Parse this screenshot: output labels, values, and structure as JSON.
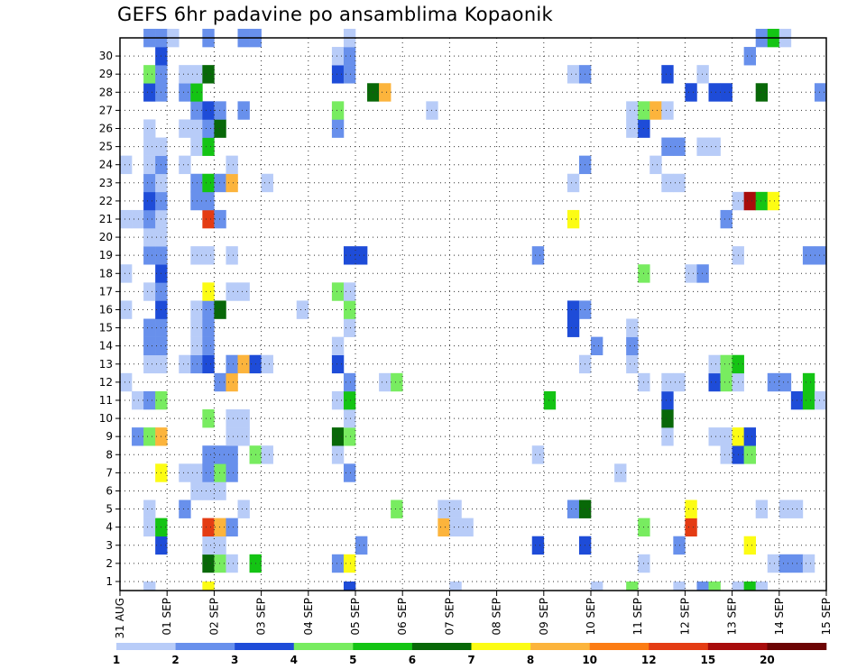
{
  "chart_data": {
    "type": "heatmap",
    "title": "GEFS 6hr padavine po ansamblima Kopaonik",
    "xlabel": "",
    "ylabel": "",
    "x_tick_labels": [
      "31 AUG",
      "01 SEP",
      "02 SEP",
      "03 SEP",
      "04 SEP",
      "05 SEP",
      "06 SEP",
      "07 SEP",
      "08 SEP",
      "09 SEP",
      "10 SEP",
      "11 SEP",
      "12 SEP",
      "13 SEP",
      "14 SEP",
      "15 SEP"
    ],
    "y_tick_labels": [
      "1",
      "2",
      "3",
      "4",
      "5",
      "6",
      "7",
      "8",
      "9",
      "10",
      "11",
      "12",
      "13",
      "14",
      "15",
      "16",
      "17",
      "18",
      "19",
      "20",
      "21",
      "22",
      "23",
      "24",
      "25",
      "26",
      "27",
      "28",
      "29",
      "30"
    ],
    "xlim_steps": [
      0,
      60
    ],
    "ylim_members": [
      0,
      30
    ],
    "grid": true,
    "colorbar_labels": [
      "1",
      "2",
      "3",
      "4",
      "5",
      "6",
      "7",
      "8",
      "10",
      "12",
      "15",
      "20"
    ],
    "colorbar_colors": [
      "#b8ccf8",
      "#6890ec",
      "#1e4cd8",
      "#78ec60",
      "#14c414",
      "#086808",
      "#fcfc14",
      "#fcb43c",
      "#fc7c14",
      "#e43c14",
      "#a80c0c",
      "#6c0404"
    ],
    "cell_colors": {
      "a": "#b8ccf8",
      "b": "#6890ec",
      "c": "#1e4cd8",
      "d": "#78ec60",
      "e": "#14c414",
      "f": "#086808",
      "g": "#fcfc14",
      "h": "#fcb43c",
      "i": "#fc7c14",
      "j": "#e43c14",
      "k": "#a80c0c"
    },
    "cells": [
      [
        0,
        2,
        "a"
      ],
      [
        0,
        7,
        "g"
      ],
      [
        0,
        19,
        "c"
      ],
      [
        0,
        28,
        "a"
      ],
      [
        0,
        40,
        "a"
      ],
      [
        0,
        43,
        "d"
      ],
      [
        0,
        47,
        "a"
      ],
      [
        0,
        49,
        "b"
      ],
      [
        0,
        50,
        "d"
      ],
      [
        0,
        52,
        "a"
      ],
      [
        0,
        53,
        "e"
      ],
      [
        0,
        54,
        "a"
      ],
      [
        1,
        7,
        "f"
      ],
      [
        1,
        8,
        "d"
      ],
      [
        1,
        9,
        "a"
      ],
      [
        1,
        11,
        "e"
      ],
      [
        1,
        18,
        "b"
      ],
      [
        1,
        19,
        "g"
      ],
      [
        1,
        44,
        "a"
      ],
      [
        1,
        55,
        "a"
      ],
      [
        1,
        56,
        "b"
      ],
      [
        1,
        57,
        "b"
      ],
      [
        1,
        58,
        "a"
      ],
      [
        2,
        3,
        "c"
      ],
      [
        2,
        7,
        "a"
      ],
      [
        2,
        8,
        "a"
      ],
      [
        2,
        20,
        "b"
      ],
      [
        2,
        35,
        "c"
      ],
      [
        2,
        39,
        "c"
      ],
      [
        2,
        47,
        "b"
      ],
      [
        2,
        53,
        "g"
      ],
      [
        3,
        2,
        "a"
      ],
      [
        3,
        3,
        "e"
      ],
      [
        3,
        7,
        "j"
      ],
      [
        3,
        8,
        "h"
      ],
      [
        3,
        9,
        "b"
      ],
      [
        3,
        27,
        "h"
      ],
      [
        3,
        28,
        "a"
      ],
      [
        3,
        29,
        "a"
      ],
      [
        3,
        44,
        "d"
      ],
      [
        3,
        48,
        "j"
      ],
      [
        4,
        2,
        "a"
      ],
      [
        4,
        5,
        "b"
      ],
      [
        4,
        10,
        "a"
      ],
      [
        4,
        23,
        "d"
      ],
      [
        4,
        27,
        "a"
      ],
      [
        4,
        28,
        "a"
      ],
      [
        4,
        38,
        "b"
      ],
      [
        4,
        39,
        "f"
      ],
      [
        4,
        48,
        "g"
      ],
      [
        4,
        54,
        "a"
      ],
      [
        4,
        56,
        "a"
      ],
      [
        4,
        57,
        "a"
      ],
      [
        5,
        6,
        "a"
      ],
      [
        5,
        7,
        "a"
      ],
      [
        5,
        8,
        "a"
      ],
      [
        6,
        3,
        "g"
      ],
      [
        6,
        5,
        "a"
      ],
      [
        6,
        6,
        "a"
      ],
      [
        6,
        7,
        "b"
      ],
      [
        6,
        8,
        "d"
      ],
      [
        6,
        9,
        "b"
      ],
      [
        6,
        19,
        "b"
      ],
      [
        6,
        42,
        "a"
      ],
      [
        7,
        7,
        "b"
      ],
      [
        7,
        8,
        "b"
      ],
      [
        7,
        9,
        "b"
      ],
      [
        7,
        11,
        "d"
      ],
      [
        7,
        12,
        "a"
      ],
      [
        7,
        18,
        "a"
      ],
      [
        7,
        35,
        "a"
      ],
      [
        7,
        51,
        "a"
      ],
      [
        7,
        52,
        "c"
      ],
      [
        7,
        53,
        "d"
      ],
      [
        8,
        1,
        "b"
      ],
      [
        8,
        2,
        "d"
      ],
      [
        8,
        3,
        "h"
      ],
      [
        8,
        9,
        "a"
      ],
      [
        8,
        10,
        "a"
      ],
      [
        8,
        18,
        "f"
      ],
      [
        8,
        19,
        "d"
      ],
      [
        8,
        46,
        "a"
      ],
      [
        8,
        50,
        "a"
      ],
      [
        8,
        51,
        "a"
      ],
      [
        8,
        52,
        "g"
      ],
      [
        8,
        53,
        "c"
      ],
      [
        9,
        7,
        "d"
      ],
      [
        9,
        9,
        "a"
      ],
      [
        9,
        10,
        "a"
      ],
      [
        9,
        19,
        "a"
      ],
      [
        9,
        46,
        "f"
      ],
      [
        10,
        1,
        "a"
      ],
      [
        10,
        2,
        "b"
      ],
      [
        10,
        3,
        "d"
      ],
      [
        10,
        18,
        "a"
      ],
      [
        10,
        19,
        "e"
      ],
      [
        10,
        36,
        "e"
      ],
      [
        10,
        46,
        "c"
      ],
      [
        10,
        57,
        "c"
      ],
      [
        10,
        58,
        "e"
      ],
      [
        10,
        59,
        "a"
      ],
      [
        11,
        0,
        "a"
      ],
      [
        11,
        8,
        "b"
      ],
      [
        11,
        9,
        "h"
      ],
      [
        11,
        19,
        "b"
      ],
      [
        11,
        22,
        "a"
      ],
      [
        11,
        23,
        "d"
      ],
      [
        11,
        44,
        "a"
      ],
      [
        11,
        46,
        "a"
      ],
      [
        11,
        47,
        "a"
      ],
      [
        11,
        50,
        "c"
      ],
      [
        11,
        51,
        "d"
      ],
      [
        11,
        52,
        "a"
      ],
      [
        11,
        55,
        "b"
      ],
      [
        11,
        56,
        "b"
      ],
      [
        11,
        58,
        "e"
      ],
      [
        12,
        2,
        "a"
      ],
      [
        12,
        3,
        "a"
      ],
      [
        12,
        5,
        "a"
      ],
      [
        12,
        6,
        "b"
      ],
      [
        12,
        7,
        "c"
      ],
      [
        12,
        9,
        "b"
      ],
      [
        12,
        10,
        "h"
      ],
      [
        12,
        11,
        "c"
      ],
      [
        12,
        12,
        "a"
      ],
      [
        12,
        18,
        "c"
      ],
      [
        12,
        39,
        "a"
      ],
      [
        12,
        43,
        "a"
      ],
      [
        12,
        50,
        "a"
      ],
      [
        12,
        51,
        "d"
      ],
      [
        12,
        52,
        "e"
      ],
      [
        13,
        2,
        "b"
      ],
      [
        13,
        3,
        "b"
      ],
      [
        13,
        6,
        "a"
      ],
      [
        13,
        7,
        "b"
      ],
      [
        13,
        18,
        "a"
      ],
      [
        13,
        40,
        "b"
      ],
      [
        13,
        43,
        "b"
      ],
      [
        14,
        2,
        "b"
      ],
      [
        14,
        3,
        "b"
      ],
      [
        14,
        6,
        "a"
      ],
      [
        14,
        7,
        "b"
      ],
      [
        14,
        19,
        "a"
      ],
      [
        14,
        38,
        "c"
      ],
      [
        14,
        43,
        "a"
      ],
      [
        15,
        0,
        "a"
      ],
      [
        15,
        3,
        "c"
      ],
      [
        15,
        6,
        "a"
      ],
      [
        15,
        7,
        "b"
      ],
      [
        15,
        8,
        "f"
      ],
      [
        15,
        15,
        "a"
      ],
      [
        15,
        19,
        "d"
      ],
      [
        15,
        38,
        "c"
      ],
      [
        15,
        39,
        "b"
      ],
      [
        16,
        2,
        "a"
      ],
      [
        16,
        3,
        "b"
      ],
      [
        16,
        7,
        "g"
      ],
      [
        16,
        9,
        "a"
      ],
      [
        16,
        10,
        "a"
      ],
      [
        16,
        18,
        "d"
      ],
      [
        16,
        19,
        "a"
      ],
      [
        17,
        0,
        "a"
      ],
      [
        17,
        3,
        "c"
      ],
      [
        17,
        44,
        "d"
      ],
      [
        17,
        48,
        "a"
      ],
      [
        17,
        49,
        "b"
      ],
      [
        18,
        2,
        "b"
      ],
      [
        18,
        3,
        "b"
      ],
      [
        18,
        6,
        "a"
      ],
      [
        18,
        7,
        "a"
      ],
      [
        18,
        9,
        "a"
      ],
      [
        18,
        19,
        "c"
      ],
      [
        18,
        20,
        "c"
      ],
      [
        18,
        35,
        "b"
      ],
      [
        18,
        52,
        "a"
      ],
      [
        18,
        58,
        "b"
      ],
      [
        18,
        59,
        "b"
      ],
      [
        19,
        2,
        "a"
      ],
      [
        19,
        3,
        "a"
      ],
      [
        20,
        0,
        "a"
      ],
      [
        20,
        1,
        "a"
      ],
      [
        20,
        2,
        "b"
      ],
      [
        20,
        3,
        "a"
      ],
      [
        20,
        7,
        "j"
      ],
      [
        20,
        8,
        "b"
      ],
      [
        20,
        38,
        "g"
      ],
      [
        20,
        51,
        "b"
      ],
      [
        21,
        2,
        "c"
      ],
      [
        21,
        3,
        "b"
      ],
      [
        21,
        6,
        "b"
      ],
      [
        21,
        7,
        "b"
      ],
      [
        21,
        52,
        "a"
      ],
      [
        21,
        53,
        "k"
      ],
      [
        21,
        54,
        "e"
      ],
      [
        21,
        55,
        "g"
      ],
      [
        22,
        2,
        "b"
      ],
      [
        22,
        3,
        "a"
      ],
      [
        22,
        6,
        "b"
      ],
      [
        22,
        7,
        "e"
      ],
      [
        22,
        8,
        "b"
      ],
      [
        22,
        9,
        "h"
      ],
      [
        22,
        12,
        "a"
      ],
      [
        22,
        38,
        "a"
      ],
      [
        22,
        46,
        "a"
      ],
      [
        22,
        47,
        "a"
      ],
      [
        23,
        0,
        "a"
      ],
      [
        23,
        2,
        "a"
      ],
      [
        23,
        3,
        "b"
      ],
      [
        23,
        5,
        "a"
      ],
      [
        23,
        9,
        "a"
      ],
      [
        23,
        39,
        "b"
      ],
      [
        23,
        45,
        "a"
      ],
      [
        24,
        2,
        "a"
      ],
      [
        24,
        3,
        "a"
      ],
      [
        24,
        6,
        "a"
      ],
      [
        24,
        7,
        "e"
      ],
      [
        24,
        46,
        "b"
      ],
      [
        24,
        47,
        "b"
      ],
      [
        24,
        49,
        "a"
      ],
      [
        24,
        50,
        "a"
      ],
      [
        25,
        2,
        "a"
      ],
      [
        25,
        5,
        "a"
      ],
      [
        25,
        6,
        "a"
      ],
      [
        25,
        7,
        "b"
      ],
      [
        25,
        8,
        "f"
      ],
      [
        25,
        18,
        "b"
      ],
      [
        25,
        43,
        "a"
      ],
      [
        25,
        44,
        "c"
      ],
      [
        26,
        6,
        "b"
      ],
      [
        26,
        7,
        "c"
      ],
      [
        26,
        8,
        "b"
      ],
      [
        26,
        10,
        "b"
      ],
      [
        26,
        18,
        "d"
      ],
      [
        26,
        26,
        "a"
      ],
      [
        26,
        43,
        "a"
      ],
      [
        26,
        44,
        "d"
      ],
      [
        26,
        45,
        "h"
      ],
      [
        26,
        46,
        "a"
      ],
      [
        27,
        2,
        "c"
      ],
      [
        27,
        3,
        "b"
      ],
      [
        27,
        5,
        "b"
      ],
      [
        27,
        6,
        "e"
      ],
      [
        27,
        21,
        "f"
      ],
      [
        27,
        22,
        "h"
      ],
      [
        27,
        48,
        "c"
      ],
      [
        27,
        50,
        "c"
      ],
      [
        27,
        51,
        "c"
      ],
      [
        27,
        54,
        "f"
      ],
      [
        27,
        59,
        "b"
      ],
      [
        28,
        2,
        "d"
      ],
      [
        28,
        3,
        "b"
      ],
      [
        28,
        5,
        "a"
      ],
      [
        28,
        6,
        "a"
      ],
      [
        28,
        7,
        "f"
      ],
      [
        28,
        18,
        "c"
      ],
      [
        28,
        19,
        "b"
      ],
      [
        28,
        38,
        "a"
      ],
      [
        28,
        39,
        "b"
      ],
      [
        28,
        46,
        "c"
      ],
      [
        28,
        49,
        "a"
      ],
      [
        29,
        3,
        "c"
      ],
      [
        29,
        18,
        "a"
      ],
      [
        29,
        19,
        "b"
      ],
      [
        29,
        53,
        "b"
      ],
      [
        30,
        2,
        "b"
      ],
      [
        30,
        3,
        "b"
      ],
      [
        30,
        4,
        "a"
      ],
      [
        30,
        7,
        "b"
      ],
      [
        30,
        10,
        "b"
      ],
      [
        30,
        11,
        "b"
      ],
      [
        30,
        19,
        "a"
      ],
      [
        30,
        54,
        "b"
      ],
      [
        30,
        55,
        "e"
      ],
      [
        30,
        56,
        "a"
      ]
    ]
  }
}
